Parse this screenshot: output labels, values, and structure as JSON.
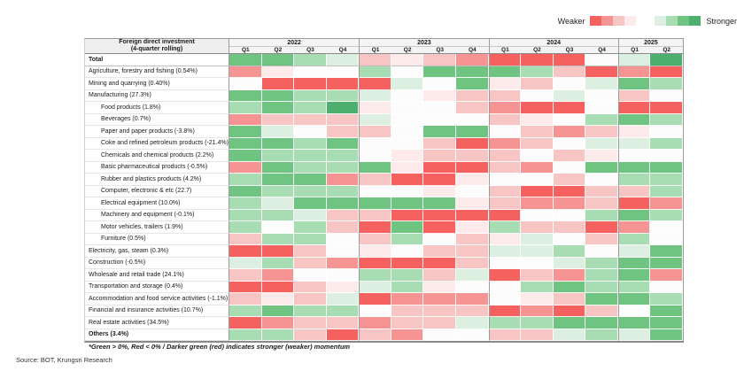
{
  "legend": {
    "weaker_label": "Weaker",
    "stronger_label": "Stronger",
    "red_swatches": [
      "#f5615f",
      "#f69393",
      "#f8c5c5",
      "#fdeaea"
    ],
    "green_swatches": [
      "#ddefe0",
      "#a8dcb2",
      "#6fc482",
      "#4caf6e"
    ]
  },
  "table_header": {
    "title_line1": "Foreign direct investment",
    "title_line2": "(4-quarter rolling)"
  },
  "chart_data": {
    "type": "heatmap",
    "title": "Foreign direct investment (4-quarter rolling)",
    "year_groups": [
      {
        "year": "2022",
        "quarters": [
          "Q1",
          "Q2",
          "Q3",
          "Q4"
        ]
      },
      {
        "year": "2023",
        "quarters": [
          "Q1",
          "Q2",
          "Q3",
          "Q4"
        ]
      },
      {
        "year": "2024",
        "quarters": [
          "Q1",
          "Q2",
          "Q3",
          "Q4"
        ]
      },
      {
        "year": "2025",
        "quarters": [
          "Q1",
          "Q2"
        ]
      }
    ],
    "columns": [
      "2022 Q1",
      "2022 Q2",
      "2022 Q3",
      "2022 Q4",
      "2023 Q1",
      "2023 Q2",
      "2023 Q3",
      "2023 Q4",
      "2024 Q1",
      "2024 Q2",
      "2024 Q3",
      "2024 Q4",
      "2025 Q1",
      "2025 Q2"
    ],
    "color_scale": {
      "g4": "#4caf6e",
      "g3": "#6fc482",
      "g2": "#a8dcb2",
      "g1": "#ddefe0",
      "w": "#fbfcfb",
      "r1": "#fdeaea",
      "r2": "#f8c5c5",
      "r3": "#f69393",
      "r4": "#f5615f"
    },
    "scale_meaning": "g4 strongest positive (stronger momentum, darker green) ... r4 strongest negative (weaker momentum, darker red); w = neutral",
    "rows": [
      {
        "label": "Total",
        "indent": false,
        "bold": true,
        "cells": [
          "g3",
          "g3",
          "g2",
          "g1",
          "r2",
          "r1",
          "r2",
          "r3",
          "r4",
          "r4",
          "r4",
          "w",
          "g1",
          "g4"
        ]
      },
      {
        "label": "Agriculture, forestry and fishing (0.54%)",
        "indent": false,
        "bold": false,
        "cells": [
          "r3",
          "r1",
          "w",
          "w",
          "g2",
          "w",
          "g3",
          "g3",
          "g3",
          "g2",
          "r2",
          "r4",
          "r3",
          "r4"
        ]
      },
      {
        "label": "Mining and quarrying (0.40%)",
        "indent": false,
        "bold": false,
        "cells": [
          "w",
          "r4",
          "r4",
          "r4",
          "r4",
          "g1",
          "w",
          "g3",
          "r1",
          "r2",
          "w",
          "g1",
          "g3",
          "g2"
        ]
      },
      {
        "label": "Manufacturing (27.3%)",
        "indent": false,
        "bold": false,
        "cells": [
          "g3",
          "g3",
          "g2",
          "g2",
          "g1",
          "w",
          "r1",
          "r2",
          "r2",
          "w",
          "g1",
          "w",
          "r2",
          "w"
        ]
      },
      {
        "label": "Food products (1.8%)",
        "indent": true,
        "bold": false,
        "cells": [
          "g2",
          "g3",
          "g2",
          "g4",
          "r1",
          "w",
          "w",
          "r2",
          "r3",
          "r4",
          "r4",
          "w",
          "r4",
          "r4"
        ]
      },
      {
        "label": "Beverages (0.7%)",
        "indent": true,
        "bold": false,
        "cells": [
          "r3",
          "r2",
          "r2",
          "r2",
          "g1",
          "w",
          "w",
          "w",
          "r2",
          "r1",
          "w",
          "g2",
          "g3",
          "g2"
        ]
      },
      {
        "label": "Paper and paper products (-3.8%)",
        "indent": true,
        "bold": false,
        "cells": [
          "g3",
          "g1",
          "w",
          "r2",
          "r2",
          "w",
          "g3",
          "g3",
          "w",
          "r2",
          "r3",
          "r2",
          "r1",
          "w"
        ]
      },
      {
        "label": "Coke and refined petroleum products (-21.4%)",
        "indent": true,
        "bold": false,
        "cells": [
          "g3",
          "g3",
          "g2",
          "g3",
          "w",
          "w",
          "r2",
          "r4",
          "r3",
          "r2",
          "w",
          "g1",
          "g1",
          "g2"
        ]
      },
      {
        "label": "Chemicals and chemical products (2.2%)",
        "indent": true,
        "bold": false,
        "cells": [
          "g3",
          "g2",
          "g2",
          "g2",
          "w",
          "r1",
          "r2",
          "r2",
          "r2",
          "w",
          "r2",
          "r1",
          "w",
          "w"
        ]
      },
      {
        "label": "Basic pharmaceutical products (-0.5%)",
        "indent": true,
        "bold": false,
        "cells": [
          "r3",
          "g3",
          "g2",
          "g2",
          "g3",
          "r1",
          "r4",
          "r4",
          "r2",
          "r3",
          "w",
          "g3",
          "g3",
          "g3"
        ]
      },
      {
        "label": "Rubber and plastics products (4.2%)",
        "indent": true,
        "bold": false,
        "cells": [
          "g2",
          "g3",
          "g3",
          "r3",
          "r2",
          "r4",
          "r4",
          "r1",
          "w",
          "w",
          "r2",
          "w",
          "g2",
          "g2"
        ]
      },
      {
        "label": "Computer, electronic & etc (22.7)",
        "indent": true,
        "bold": false,
        "cells": [
          "g3",
          "g2",
          "g2",
          "g2",
          "w",
          "w",
          "r1",
          "w",
          "r2",
          "r4",
          "r4",
          "r2",
          "r2",
          "g2"
        ]
      },
      {
        "label": "Electrical equipment (10.0%)",
        "indent": true,
        "bold": false,
        "cells": [
          "g2",
          "g1",
          "g3",
          "g3",
          "g3",
          "g3",
          "g3",
          "r1",
          "r2",
          "r3",
          "r3",
          "r2",
          "r4",
          "r3"
        ]
      },
      {
        "label": "Machinery and equipment (-0.1%)",
        "indent": true,
        "bold": false,
        "cells": [
          "g2",
          "g2",
          "g1",
          "r2",
          "r2",
          "r4",
          "r4",
          "r4",
          "r4",
          "w",
          "w",
          "g2",
          "g3",
          "g2"
        ]
      },
      {
        "label": "Motor vehicles, trailers (1.9%)",
        "indent": true,
        "bold": false,
        "cells": [
          "g2",
          "w",
          "g2",
          "r2",
          "r4",
          "g3",
          "r4",
          "r1",
          "g2",
          "r2",
          "r2",
          "r4",
          "r3",
          "w"
        ]
      },
      {
        "label": "Furniture (0.5%)",
        "indent": true,
        "bold": false,
        "cells": [
          "r2",
          "g2",
          "g2",
          "w",
          "r2",
          "g2",
          "w",
          "r2",
          "r1",
          "g1",
          "w",
          "r2",
          "g2",
          "w"
        ]
      },
      {
        "label": "Electricity, gas, steam (0.3%)",
        "indent": false,
        "bold": false,
        "cells": [
          "r4",
          "r4",
          "r2",
          "w",
          "r1",
          "w",
          "r2",
          "r2",
          "g1",
          "g1",
          "g2",
          "w",
          "g1",
          "g3"
        ]
      },
      {
        "label": "Construction (-0.5%)",
        "indent": false,
        "bold": false,
        "cells": [
          "g1",
          "g2",
          "r2",
          "r3",
          "r4",
          "r4",
          "r4",
          "r2",
          "w",
          "w",
          "g1",
          "g2",
          "g3",
          "g3"
        ]
      },
      {
        "label": "Wholesale and retail trade (24.1%)",
        "indent": false,
        "bold": false,
        "cells": [
          "r2",
          "r3",
          "w",
          "w",
          "g2",
          "g2",
          "r2",
          "g1",
          "r4",
          "r2",
          "r3",
          "g2",
          "g3",
          "r3"
        ]
      },
      {
        "label": "Transportation and storage (0.4%)",
        "indent": false,
        "bold": false,
        "cells": [
          "r4",
          "r4",
          "r2",
          "r1",
          "g1",
          "g2",
          "r1",
          "w",
          "w",
          "g2",
          "g3",
          "g2",
          "g2",
          "w"
        ]
      },
      {
        "label": "Accommodation and food service activities (-1.1%)",
        "indent": false,
        "bold": false,
        "cells": [
          "r2",
          "r1",
          "r2",
          "g1",
          "r4",
          "r3",
          "r3",
          "r3",
          "w",
          "r1",
          "r2",
          "g3",
          "g3",
          "g2"
        ]
      },
      {
        "label": "Financial and insurance activities (10.7%)",
        "indent": false,
        "bold": false,
        "cells": [
          "g2",
          "g3",
          "g2",
          "g2",
          "w",
          "r2",
          "r2",
          "r2",
          "r4",
          "r3",
          "r4",
          "r2",
          "w",
          "g3"
        ]
      },
      {
        "label": "Real estate activities (34.5%)",
        "indent": false,
        "bold": false,
        "cells": [
          "r4",
          "r3",
          "r2",
          "r2",
          "r3",
          "r2",
          "r2",
          "g1",
          "g2",
          "g2",
          "g3",
          "g3",
          "g3",
          "g3"
        ]
      },
      {
        "label": "Others (3.4%)",
        "indent": false,
        "bold": true,
        "cells": [
          "g2",
          "g2",
          "r2",
          "r4",
          "r2",
          "r3",
          "w",
          "w",
          "r2",
          "r2",
          "g1",
          "g2",
          "g1",
          "g3"
        ]
      }
    ]
  },
  "footnote": "*Green > 0%, Red < 0% / Darker green (red) indicates stronger (weaker) momentum",
  "source": "Source: BOT, Krungsri Research"
}
